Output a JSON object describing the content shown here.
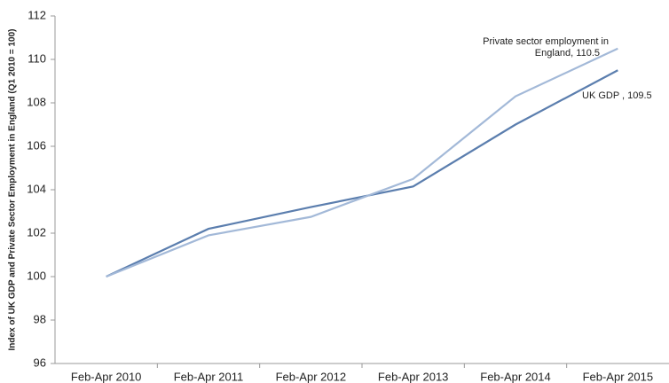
{
  "chart_data": {
    "type": "line",
    "y_label": "Index of UK GDP and Private Sector Employment in England (Q1 2010 = 100)",
    "categories": [
      "Feb-Apr 2010",
      "Feb-Apr 2011",
      "Feb-Apr 2012",
      "Feb-Apr 2013",
      "Feb-Apr 2014",
      "Feb-Apr 2015"
    ],
    "series": [
      {
        "name": "UK GDP",
        "color": "#5b7eae",
        "values": [
          100,
          102.2,
          103.2,
          104.15,
          107,
          109.5
        ]
      },
      {
        "name": "Private sector employment in England",
        "color": "#a3b9d8",
        "values": [
          100,
          101.9,
          102.75,
          104.5,
          108.3,
          110.5
        ]
      }
    ],
    "annotations": [
      {
        "lines": [
          "Private sector employment in",
          "England, 110.5"
        ]
      },
      {
        "lines": [
          "UK GDP , 109.5"
        ]
      }
    ],
    "ylim": [
      96,
      112
    ],
    "yticks": [
      96,
      98,
      100,
      102,
      104,
      106,
      108,
      110,
      112
    ],
    "grid": false
  }
}
